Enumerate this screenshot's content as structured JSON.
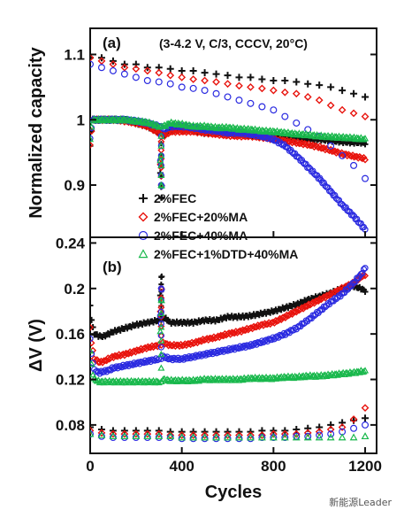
{
  "colors": {
    "s1": "#111111",
    "s2": "#e8140e",
    "s3": "#2a2ae0",
    "s4": "#19b84c",
    "axis": "#111111"
  },
  "watermark": "新能源Leader",
  "chart_data": [
    {
      "type": "scatter",
      "panel_label": "(a)",
      "condition_label": "(3-4.2 V, C/3, CCCV, 20°C)",
      "xlabel": "",
      "ylabel": "Normalized capacity",
      "xlim": [
        0,
        1250
      ],
      "ylim": [
        0.82,
        1.14
      ],
      "yticks": [
        0.9,
        1.0,
        1.1
      ],
      "ytick_labels": [
        "0.9",
        "1",
        "1.1"
      ],
      "grid": false,
      "legend_position": "bottom-left",
      "series": [
        {
          "name": "2%FEC",
          "marker": "plus",
          "charge_x": [
            0,
            10,
            20,
            40,
            60,
            80,
            100,
            150,
            200,
            250,
            300,
            310,
            320,
            350,
            400,
            450,
            500,
            550,
            600,
            650,
            700,
            750,
            800,
            850,
            900,
            950,
            1000,
            1050,
            1100,
            1150,
            1180,
            1200
          ],
          "charge_y": [
            0.96,
            1.0,
            1.0,
            1.0,
            1.0,
            1.0,
            1.0,
            1.0,
            0.995,
            0.99,
            0.98,
            0.88,
            0.975,
            0.985,
            0.985,
            0.985,
            0.98,
            0.98,
            0.98,
            0.978,
            0.976,
            0.975,
            0.975,
            0.974,
            0.972,
            0.97,
            0.97,
            0.968,
            0.966,
            0.965,
            0.965,
            0.964
          ],
          "ref_x": [
            0,
            50,
            100,
            150,
            200,
            250,
            300,
            350,
            400,
            450,
            500,
            550,
            600,
            650,
            700,
            750,
            800,
            850,
            900,
            950,
            1000,
            1050,
            1100,
            1150,
            1200
          ],
          "ref_y": [
            1.095,
            1.095,
            1.09,
            1.085,
            1.085,
            1.08,
            1.08,
            1.078,
            1.075,
            1.075,
            1.072,
            1.07,
            1.068,
            1.065,
            1.065,
            1.062,
            1.06,
            1.06,
            1.058,
            1.055,
            1.053,
            1.05,
            1.045,
            1.04,
            1.035
          ]
        },
        {
          "name": "2%FEC+20%MA",
          "marker": "diamond",
          "charge_x": [
            0,
            10,
            20,
            40,
            60,
            80,
            100,
            150,
            200,
            250,
            300,
            310,
            320,
            350,
            400,
            450,
            500,
            550,
            600,
            650,
            700,
            750,
            800,
            850,
            900,
            950,
            1000,
            1050,
            1100,
            1150,
            1180,
            1200
          ],
          "charge_y": [
            0.96,
            1.0,
            1.0,
            1.0,
            1.0,
            1.0,
            1.0,
            0.998,
            0.995,
            0.99,
            0.98,
            0.9,
            0.975,
            0.982,
            0.982,
            0.982,
            0.98,
            0.978,
            0.976,
            0.975,
            0.975,
            0.973,
            0.97,
            0.968,
            0.965,
            0.962,
            0.958,
            0.953,
            0.948,
            0.944,
            0.942,
            0.94
          ],
          "ref_x": [
            0,
            50,
            100,
            150,
            200,
            250,
            300,
            350,
            400,
            450,
            500,
            550,
            600,
            650,
            700,
            750,
            800,
            850,
            900,
            950,
            1000,
            1050,
            1100,
            1150,
            1200
          ],
          "ref_y": [
            1.095,
            1.09,
            1.085,
            1.08,
            1.078,
            1.075,
            1.072,
            1.068,
            1.065,
            1.062,
            1.06,
            1.058,
            1.055,
            1.052,
            1.05,
            1.048,
            1.045,
            1.042,
            1.04,
            1.035,
            1.03,
            1.022,
            1.015,
            1.01,
            1.005
          ]
        },
        {
          "name": "2%FEC+40%MA",
          "marker": "circle",
          "charge_x": [
            0,
            10,
            20,
            40,
            60,
            80,
            100,
            150,
            200,
            250,
            300,
            310,
            320,
            350,
            400,
            450,
            500,
            550,
            600,
            650,
            700,
            750,
            800,
            850,
            900,
            950,
            1000,
            1050,
            1100,
            1150,
            1180,
            1200
          ],
          "charge_y": [
            0.97,
            1.0,
            1.0,
            1.0,
            1.0,
            1.0,
            1.0,
            1.0,
            0.998,
            0.995,
            0.99,
            0.9,
            0.985,
            0.99,
            0.99,
            0.988,
            0.985,
            0.983,
            0.98,
            0.98,
            0.978,
            0.975,
            0.97,
            0.96,
            0.945,
            0.928,
            0.91,
            0.89,
            0.87,
            0.852,
            0.84,
            0.832
          ],
          "ref_x": [
            0,
            50,
            100,
            150,
            200,
            250,
            300,
            350,
            400,
            450,
            500,
            550,
            600,
            650,
            700,
            750,
            800,
            850,
            900,
            950,
            1000,
            1050,
            1100,
            1150,
            1200
          ],
          "ref_y": [
            1.085,
            1.08,
            1.075,
            1.07,
            1.065,
            1.06,
            1.058,
            1.055,
            1.05,
            1.048,
            1.045,
            1.04,
            1.035,
            1.03,
            1.025,
            1.02,
            1.015,
            1.005,
            0.995,
            0.985,
            0.975,
            0.96,
            0.945,
            0.93,
            0.91
          ]
        },
        {
          "name": "2%FEC+1%DTD+40%MA",
          "marker": "triangle",
          "charge_x": [
            0,
            10,
            20,
            40,
            60,
            80,
            100,
            150,
            200,
            250,
            300,
            310,
            320,
            350,
            400,
            450,
            500,
            550,
            600,
            650,
            700,
            750,
            800,
            850,
            900,
            950,
            1000,
            1050,
            1100,
            1150,
            1180,
            1200
          ],
          "charge_y": [
            0.97,
            1.0,
            1.0,
            1.0,
            1.0,
            1.0,
            1.0,
            1.0,
            0.998,
            0.996,
            0.99,
            0.9,
            0.99,
            0.995,
            0.993,
            0.99,
            0.99,
            0.988,
            0.988,
            0.986,
            0.985,
            0.983,
            0.982,
            0.98,
            0.978,
            0.977,
            0.975,
            0.974,
            0.973,
            0.972,
            0.971,
            0.97
          ],
          "ref_x": [],
          "ref_y": []
        }
      ]
    },
    {
      "type": "scatter",
      "panel_label": "(b)",
      "xlabel": "Cycles",
      "ylabel": "ΔV (V)",
      "xlim": [
        0,
        1250
      ],
      "ylim": [
        0.055,
        0.245
      ],
      "xticks": [
        0,
        400,
        800,
        1200
      ],
      "xtick_labels": [
        "0",
        "400",
        "800",
        "1200"
      ],
      "yticks": [
        0.08,
        0.12,
        0.16,
        0.2,
        0.24
      ],
      "ytick_labels": [
        "0.08",
        "0.12",
        "0.16",
        "0.2",
        "0.24"
      ],
      "grid": false,
      "series": [
        {
          "name": "2%FEC",
          "marker": "plus",
          "charge_x": [
            0,
            10,
            20,
            40,
            60,
            80,
            100,
            150,
            200,
            250,
            300,
            310,
            320,
            350,
            400,
            450,
            500,
            550,
            600,
            650,
            700,
            750,
            800,
            850,
            900,
            950,
            1000,
            1050,
            1100,
            1150,
            1180,
            1200
          ],
          "charge_y": [
            0.185,
            0.165,
            0.16,
            0.158,
            0.158,
            0.16,
            0.162,
            0.165,
            0.168,
            0.17,
            0.172,
            0.21,
            0.175,
            0.17,
            0.17,
            0.17,
            0.172,
            0.172,
            0.175,
            0.175,
            0.176,
            0.178,
            0.18,
            0.183,
            0.186,
            0.19,
            0.193,
            0.196,
            0.2,
            0.202,
            0.2,
            0.198
          ],
          "ref_x": [
            0,
            50,
            100,
            150,
            200,
            250,
            300,
            350,
            400,
            450,
            500,
            550,
            600,
            650,
            700,
            750,
            800,
            850,
            900,
            950,
            1000,
            1050,
            1100,
            1150,
            1200
          ],
          "ref_y": [
            0.078,
            0.076,
            0.075,
            0.075,
            0.075,
            0.075,
            0.075,
            0.074,
            0.074,
            0.074,
            0.074,
            0.074,
            0.074,
            0.074,
            0.074,
            0.075,
            0.075,
            0.075,
            0.076,
            0.077,
            0.078,
            0.08,
            0.082,
            0.084,
            0.086
          ]
        },
        {
          "name": "2%FEC+20%MA",
          "marker": "diamond",
          "charge_x": [
            0,
            10,
            20,
            40,
            60,
            80,
            100,
            150,
            200,
            250,
            300,
            310,
            320,
            350,
            400,
            450,
            500,
            550,
            600,
            650,
            700,
            750,
            800,
            850,
            900,
            950,
            1000,
            1050,
            1100,
            1150,
            1180,
            1200
          ],
          "charge_y": [
            0.165,
            0.145,
            0.138,
            0.135,
            0.136,
            0.138,
            0.14,
            0.142,
            0.145,
            0.148,
            0.15,
            0.2,
            0.152,
            0.15,
            0.15,
            0.152,
            0.155,
            0.157,
            0.16,
            0.162,
            0.165,
            0.168,
            0.17,
            0.175,
            0.18,
            0.185,
            0.19,
            0.195,
            0.2,
            0.205,
            0.21,
            0.212
          ],
          "ref_x": [
            0,
            50,
            100,
            150,
            200,
            250,
            300,
            350,
            400,
            450,
            500,
            550,
            600,
            650,
            700,
            750,
            800,
            850,
            900,
            950,
            1000,
            1050,
            1100,
            1150,
            1200
          ],
          "ref_y": [
            0.075,
            0.073,
            0.072,
            0.072,
            0.072,
            0.072,
            0.072,
            0.071,
            0.071,
            0.071,
            0.071,
            0.071,
            0.071,
            0.071,
            0.071,
            0.071,
            0.072,
            0.072,
            0.072,
            0.073,
            0.074,
            0.076,
            0.078,
            0.085,
            0.095
          ]
        },
        {
          "name": "2%FEC+40%MA",
          "marker": "circle",
          "charge_x": [
            0,
            10,
            20,
            40,
            60,
            80,
            100,
            150,
            200,
            250,
            300,
            310,
            320,
            350,
            400,
            450,
            500,
            550,
            600,
            650,
            700,
            750,
            800,
            850,
            900,
            950,
            1000,
            1050,
            1100,
            1150,
            1180,
            1200
          ],
          "charge_y": [
            0.155,
            0.135,
            0.128,
            0.126,
            0.127,
            0.128,
            0.13,
            0.132,
            0.134,
            0.136,
            0.138,
            0.2,
            0.14,
            0.138,
            0.138,
            0.14,
            0.142,
            0.144,
            0.146,
            0.148,
            0.15,
            0.153,
            0.156,
            0.16,
            0.165,
            0.172,
            0.18,
            0.188,
            0.195,
            0.205,
            0.212,
            0.218
          ],
          "ref_x": [
            0,
            50,
            100,
            150,
            200,
            250,
            300,
            350,
            400,
            450,
            500,
            550,
            600,
            650,
            700,
            750,
            800,
            850,
            900,
            950,
            1000,
            1050,
            1100,
            1150,
            1200
          ],
          "ref_y": [
            0.072,
            0.07,
            0.069,
            0.069,
            0.069,
            0.069,
            0.069,
            0.069,
            0.068,
            0.068,
            0.068,
            0.068,
            0.068,
            0.068,
            0.068,
            0.069,
            0.069,
            0.069,
            0.07,
            0.07,
            0.071,
            0.072,
            0.074,
            0.077,
            0.08
          ]
        },
        {
          "name": "2%FEC+1%DTD+40%MA",
          "marker": "triangle",
          "charge_x": [
            0,
            10,
            20,
            40,
            60,
            80,
            100,
            150,
            200,
            250,
            300,
            310,
            320,
            350,
            400,
            450,
            500,
            550,
            600,
            650,
            700,
            750,
            800,
            850,
            900,
            950,
            1000,
            1050,
            1100,
            1150,
            1180,
            1200
          ],
          "charge_y": [
            0.145,
            0.125,
            0.12,
            0.118,
            0.118,
            0.118,
            0.118,
            0.118,
            0.118,
            0.118,
            0.118,
            0.19,
            0.12,
            0.119,
            0.119,
            0.119,
            0.12,
            0.12,
            0.12,
            0.12,
            0.121,
            0.121,
            0.121,
            0.122,
            0.122,
            0.123,
            0.123,
            0.124,
            0.125,
            0.126,
            0.127,
            0.127
          ],
          "ref_x": [
            0,
            50,
            100,
            150,
            200,
            250,
            300,
            350,
            400,
            450,
            500,
            550,
            600,
            650,
            700,
            750,
            800,
            850,
            900,
            950,
            1000,
            1050,
            1100,
            1150,
            1200
          ],
          "ref_y": [
            0.072,
            0.071,
            0.07,
            0.07,
            0.07,
            0.07,
            0.07,
            0.07,
            0.069,
            0.069,
            0.069,
            0.069,
            0.069,
            0.069,
            0.069,
            0.069,
            0.069,
            0.069,
            0.069,
            0.069,
            0.069,
            0.069,
            0.069,
            0.069,
            0.07
          ]
        }
      ]
    }
  ]
}
